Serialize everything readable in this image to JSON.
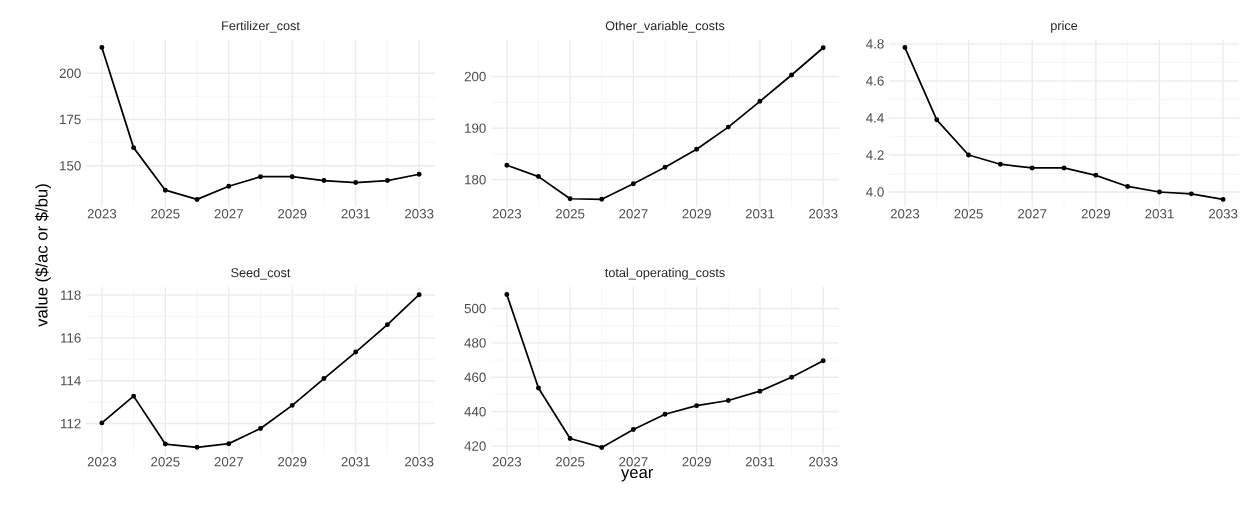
{
  "chart_data": [
    {
      "type": "line",
      "title": "Fertilizer_cost",
      "x": [
        2023,
        2024,
        2025,
        2026,
        2027,
        2028,
        2029,
        2030,
        2031,
        2032,
        2033
      ],
      "values": [
        213.9,
        159.8,
        136.8,
        131.8,
        138.9,
        144.1,
        144.1,
        142.0,
        140.9,
        142.0,
        145.4
      ],
      "color": "#000000",
      "xlim": [
        2022.5,
        2033.5
      ],
      "xticks": [
        2023,
        2025,
        2027,
        2029,
        2031,
        2033
      ],
      "ylim": [
        127.7,
        218.0
      ],
      "yticks": [
        150,
        175,
        200
      ],
      "grid": true,
      "marker": "circle"
    },
    {
      "type": "line",
      "title": "Other_variable_costs",
      "x": [
        2023,
        2024,
        2025,
        2026,
        2027,
        2028,
        2029,
        2030,
        2031,
        2032,
        2033
      ],
      "values": [
        182.8,
        180.6,
        176.3,
        176.2,
        179.2,
        182.4,
        185.9,
        190.2,
        195.2,
        200.3,
        205.6
      ],
      "color": "#000000",
      "xlim": [
        2022.5,
        2033.5
      ],
      "xticks": [
        2023,
        2025,
        2027,
        2029,
        2031,
        2033
      ],
      "ylim": [
        174.7,
        207.1
      ],
      "yticks": [
        180,
        190,
        200
      ],
      "grid": true,
      "marker": "circle"
    },
    {
      "type": "line",
      "title": "price",
      "x": [
        2023,
        2024,
        2025,
        2026,
        2027,
        2028,
        2029,
        2030,
        2031,
        2032,
        2033
      ],
      "values": [
        4.78,
        4.39,
        4.2,
        4.15,
        4.13,
        4.13,
        4.09,
        4.03,
        4.0,
        3.99,
        3.96
      ],
      "color": "#000000",
      "xlim": [
        2022.5,
        2033.5
      ],
      "xticks": [
        2023,
        2025,
        2027,
        2029,
        2031,
        2033
      ],
      "ylim": [
        3.919,
        4.821
      ],
      "yticks": [
        {
          "value": 4.0,
          "label": "4.0"
        },
        {
          "value": 4.2,
          "label": "4.2"
        },
        {
          "value": 4.4,
          "label": "4.4"
        },
        {
          "value": 4.6,
          "label": "4.6"
        },
        {
          "value": 4.8,
          "label": "4.8"
        }
      ],
      "grid": true,
      "marker": "circle"
    },
    {
      "type": "line",
      "title": "Seed_cost",
      "ylabel": "value ($/ac or $/bu)",
      "x": [
        2023,
        2024,
        2025,
        2026,
        2027,
        2028,
        2029,
        2030,
        2031,
        2032,
        2033
      ],
      "values": [
        112.03,
        113.28,
        111.04,
        110.89,
        111.06,
        111.77,
        112.85,
        114.1,
        115.34,
        116.62,
        118.02
      ],
      "color": "#000000",
      "xlim": [
        2022.5,
        2033.5
      ],
      "xticks": [
        2023,
        2025,
        2027,
        2029,
        2031,
        2033
      ],
      "ylim": [
        110.53,
        118.38
      ],
      "yticks": [
        112,
        114,
        116,
        118
      ],
      "grid": true,
      "marker": "circle"
    },
    {
      "type": "line",
      "title": "total_operating_costs",
      "xlabel": "year",
      "x": [
        2023,
        2024,
        2025,
        2026,
        2027,
        2028,
        2029,
        2030,
        2031,
        2032,
        2033
      ],
      "values": [
        508.1,
        453.8,
        424.4,
        419.2,
        429.6,
        438.5,
        443.5,
        446.5,
        451.9,
        460.0,
        469.6
      ],
      "color": "#000000",
      "xlim": [
        2022.5,
        2033.5
      ],
      "xticks": [
        2023,
        2025,
        2027,
        2029,
        2031,
        2033
      ],
      "ylim": [
        414.8,
        512.5
      ],
      "yticks": [
        420,
        440,
        460,
        480,
        500
      ],
      "grid": true,
      "marker": "circle"
    }
  ]
}
